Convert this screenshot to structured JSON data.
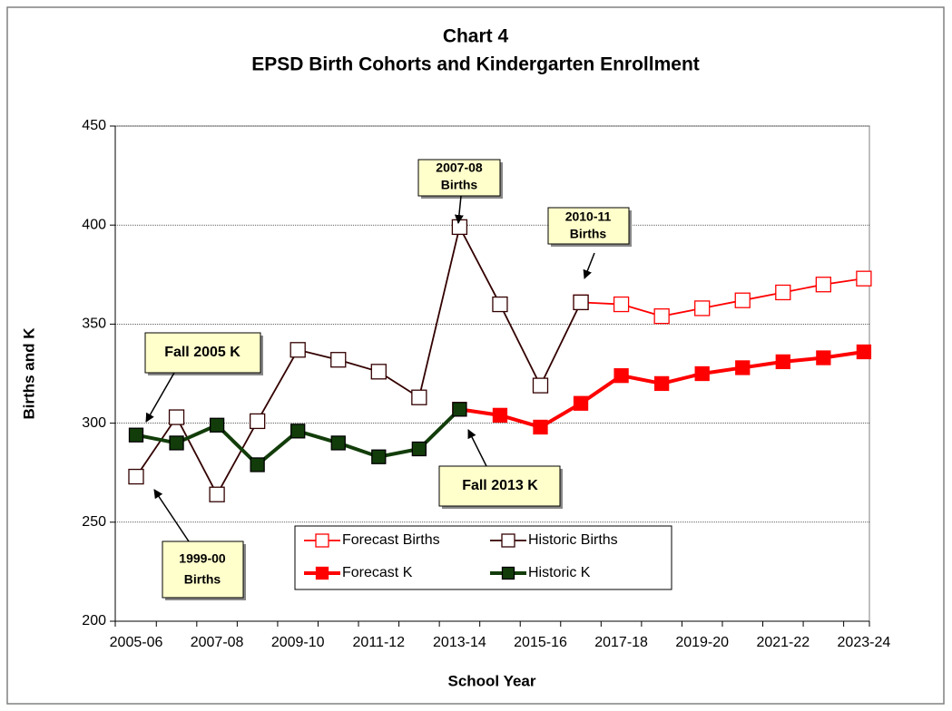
{
  "chart_data": {
    "type": "line",
    "title": "Chart 4",
    "subtitle": "EPSD Birth Cohorts and Kindergarten Enrollment",
    "x_label": "School Year",
    "y_label": "Births and K",
    "categories": [
      "2005-06",
      null,
      "2007-08",
      null,
      "2009-10",
      null,
      "2011-12",
      null,
      "2013-14",
      null,
      "2015-16",
      null,
      "2017-18",
      null,
      "2019-20",
      null,
      "2021-22",
      null,
      "2023-24"
    ],
    "series": [
      {
        "name": "Forecast Births",
        "color": "#ff0000",
        "filled": false,
        "values": [
          null,
          null,
          null,
          null,
          null,
          null,
          null,
          null,
          null,
          null,
          null,
          361,
          360,
          354,
          358,
          362,
          366,
          370,
          373
        ]
      },
      {
        "name": "Historic Births",
        "color": "#330000",
        "filled": false,
        "values": [
          273,
          303,
          264,
          301,
          337,
          332,
          326,
          313,
          399,
          360,
          319,
          361,
          null,
          null,
          null,
          null,
          null,
          null,
          null
        ]
      },
      {
        "name": "Forecast K",
        "color": "#ff0000",
        "filled": true,
        "values": [
          null,
          null,
          null,
          null,
          null,
          null,
          null,
          null,
          307,
          304,
          298,
          310,
          324,
          320,
          325,
          328,
          331,
          333,
          336
        ]
      },
      {
        "name": "Historic K",
        "color": "#123d0a",
        "filled": true,
        "values": [
          294,
          290,
          299,
          279,
          296,
          290,
          283,
          287,
          307,
          null,
          null,
          null,
          null,
          null,
          null,
          null,
          null,
          null,
          null
        ]
      }
    ],
    "ylim": [
      200,
      450
    ],
    "yticks": [
      200,
      250,
      300,
      350,
      400,
      450
    ],
    "grid": true,
    "annotations": [
      {
        "lines": [
          "Fall 2005 K"
        ]
      },
      {
        "lines": [
          "1999-00",
          "Births"
        ]
      },
      {
        "lines": [
          "2007-08",
          "Births"
        ]
      },
      {
        "lines": [
          "2010-11",
          "Births"
        ]
      },
      {
        "lines": [
          "Fall 2013 K"
        ]
      }
    ]
  }
}
